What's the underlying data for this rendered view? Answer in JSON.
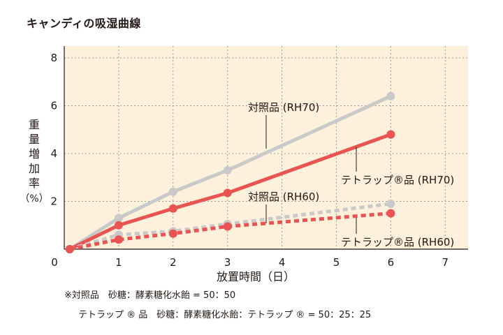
{
  "chart_data": {
    "type": "line",
    "title": "キャンディの吸湿曲線",
    "xlabel": "放置時間（日）",
    "ylabel_lines": [
      "重",
      "量",
      "増",
      "加",
      "率"
    ],
    "ylabel_unit": "（%）",
    "xlim": [
      0,
      7.3
    ],
    "ylim": [
      0,
      8
    ],
    "x_ticks": [
      0,
      1,
      2,
      3,
      4,
      5,
      6,
      7
    ],
    "y_ticks": [
      2,
      4,
      6,
      8
    ],
    "grid": true,
    "series": [
      {
        "name": "対照品 (RH70)",
        "color": "#c9c9c9",
        "dashed": false,
        "x": [
          0.1,
          1,
          2,
          3,
          6
        ],
        "values": [
          0.0,
          1.3,
          2.4,
          3.3,
          6.4
        ]
      },
      {
        "name": "テトラップ®品 (RH70)",
        "color": "#e95352",
        "dashed": false,
        "x": [
          0.1,
          1,
          2,
          3,
          6
        ],
        "values": [
          0.0,
          1.0,
          1.7,
          2.35,
          4.8
        ]
      },
      {
        "name": "対照品 (RH60)",
        "color": "#c9c9c9",
        "dashed": true,
        "x": [
          0.1,
          1,
          2,
          3,
          6
        ],
        "values": [
          0.0,
          0.6,
          0.75,
          1.05,
          1.9
        ]
      },
      {
        "name": "テトラップ®品 (RH60)",
        "color": "#e95352",
        "dashed": true,
        "x": [
          0.1,
          1,
          2,
          3,
          6
        ],
        "values": [
          0.0,
          0.4,
          0.65,
          0.95,
          1.5
        ]
      }
    ]
  },
  "notes": [
    "※対照品　砂糖：酵素糖化水飴 = 50：50",
    "テトラップ ® 品　砂糖：酵素糖化水飴：テトラップ ® = 50：25：25"
  ],
  "colors": {
    "plot_background": "#fdf1dc",
    "gridline": "#9a9a9a"
  }
}
